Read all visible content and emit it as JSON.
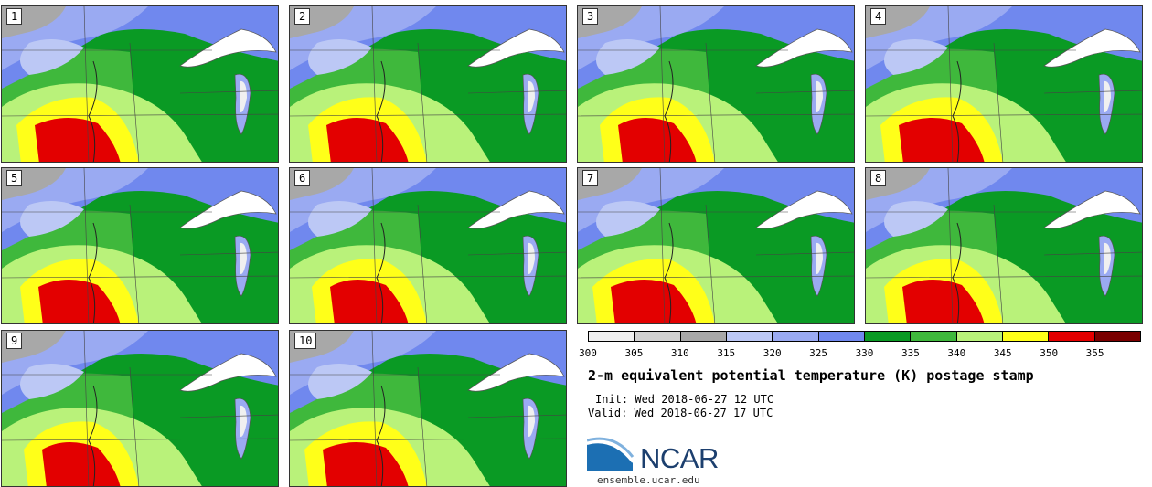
{
  "panels": [
    {
      "label": "1"
    },
    {
      "label": "2"
    },
    {
      "label": "3"
    },
    {
      "label": "4"
    },
    {
      "label": "5"
    },
    {
      "label": "6"
    },
    {
      "label": "7"
    },
    {
      "label": "8"
    },
    {
      "label": "9"
    },
    {
      "label": "10"
    }
  ],
  "colorbar": {
    "ticks": [
      "300",
      "305",
      "310",
      "315",
      "320",
      "325",
      "330",
      "335",
      "340",
      "345",
      "350",
      "355"
    ],
    "colors": [
      "#f0f0f0",
      "#d2d2d2",
      "#a8a8a8",
      "#bcc8f5",
      "#9aaaf2",
      "#7088ee",
      "#0a9a24",
      "#3fb83c",
      "#b9f27a",
      "#ffff19",
      "#e30000",
      "#7a0000"
    ]
  },
  "title": "2-m equivalent potential temperature (K) postage stamp",
  "init": "Init: Wed 2018-06-27 12 UTC",
  "valid": "Valid: Wed 2018-06-27 17 UTC",
  "logo": {
    "text": "NCAR",
    "site": "ensemble.ucar.edu"
  }
}
